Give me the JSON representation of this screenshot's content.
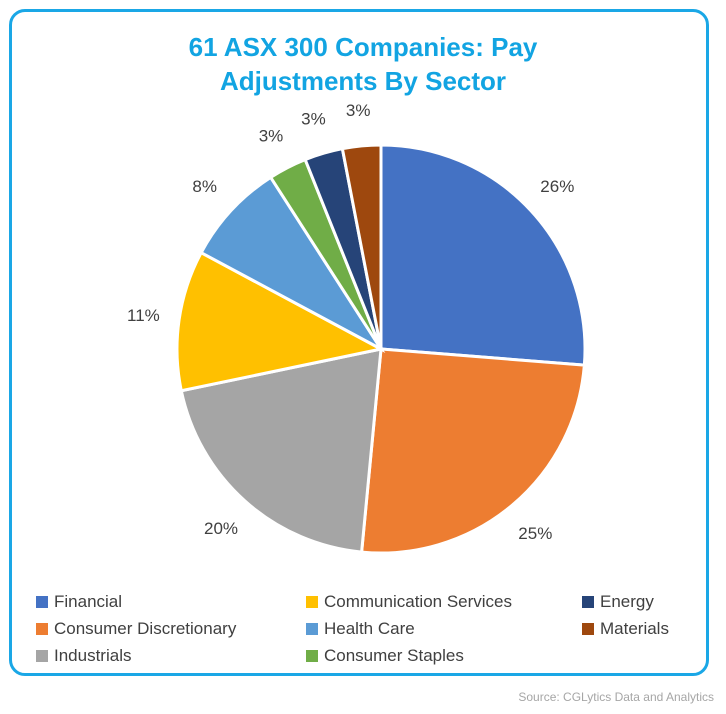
{
  "chart_data": {
    "type": "pie",
    "title_lines": [
      "61 ASX 300 Companies: Pay",
      "Adjustments By Sector"
    ],
    "slices": [
      {
        "name": "Financial",
        "value": 26,
        "label": "26%",
        "color": "#4472c4"
      },
      {
        "name": "Consumer Discretionary",
        "value": 25,
        "label": "25%",
        "color": "#ed7d31"
      },
      {
        "name": "Industrials",
        "value": 20,
        "label": "20%",
        "color": "#a5a5a5"
      },
      {
        "name": "Communication Services",
        "value": 11,
        "label": "11%",
        "color": "#ffc000"
      },
      {
        "name": "Health Care",
        "value": 8,
        "label": "8%",
        "color": "#5b9bd5"
      },
      {
        "name": "Consumer Staples",
        "value": 3,
        "label": "3%",
        "color": "#70ad47"
      },
      {
        "name": "Energy",
        "value": 3,
        "label": "3%",
        "color": "#264478"
      },
      {
        "name": "Materials",
        "value": 3,
        "label": "3%",
        "color": "#9e480e"
      }
    ],
    "legend_placement": "bottom"
  },
  "source": "Source: CGLytics Data and Analytics",
  "colors": {
    "title": "#12a4e2",
    "border": "#1aa7e6"
  }
}
